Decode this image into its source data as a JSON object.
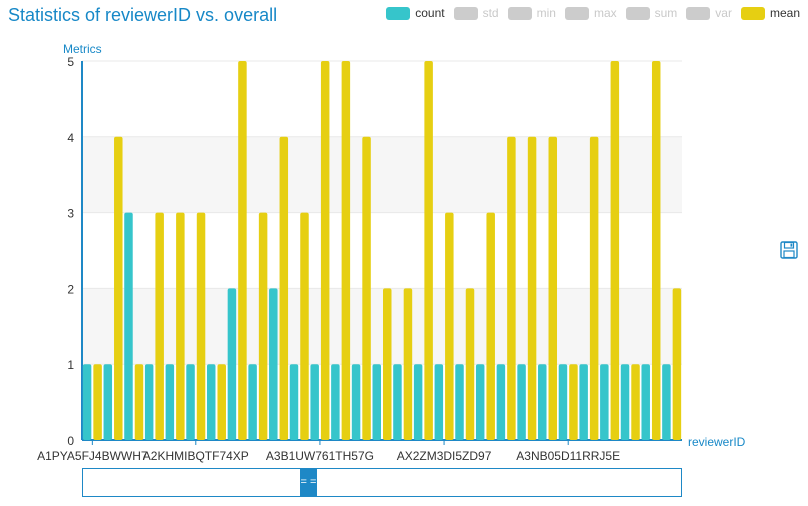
{
  "title": "Statistics of reviewerID vs. overall",
  "legend": [
    {
      "label": "count",
      "color": "#36c5cb",
      "active": true
    },
    {
      "label": "std",
      "color": "#cccccc",
      "active": false
    },
    {
      "label": "min",
      "color": "#cccccc",
      "active": false
    },
    {
      "label": "max",
      "color": "#cccccc",
      "active": false
    },
    {
      "label": "sum",
      "color": "#cccccc",
      "active": false
    },
    {
      "label": "var",
      "color": "#cccccc",
      "active": false
    },
    {
      "label": "mean",
      "color": "#e6cf12",
      "active": true
    }
  ],
  "toolbar": {
    "save_icon": "save-icon"
  },
  "slider": {
    "handle_label": "= =",
    "start": 0.362,
    "end": 0.39
  },
  "chart_data": {
    "type": "bar",
    "ylabel": "Metrics",
    "xlabel": "reviewerID",
    "ylim": [
      0,
      5
    ],
    "yticks": [
      0,
      1,
      2,
      3,
      4,
      5
    ],
    "grid": true,
    "categories": [
      "A1PYA5FJ4BWWH7",
      "",
      "",
      "",
      "",
      "A2KHMIBQTF74XP",
      "",
      "",
      "",
      "",
      "",
      "A3B1UW761TH57G",
      "",
      "",
      "",
      "",
      "",
      "AX2ZM3DI5ZD97",
      "",
      "",
      "",
      "",
      "",
      "A3NB05D11RRJ5E",
      "",
      "",
      "",
      "",
      ""
    ],
    "x_tick_labels": [
      "A1PYA5FJ4BWWH7",
      "A2KHMIBQTF74XP",
      "A3B1UW761TH57G",
      "AX2ZM3DI5ZD97",
      "A3NB05D11RRJ5E"
    ],
    "series": [
      {
        "name": "count",
        "color": "#36c5cb",
        "values": [
          1,
          1,
          3,
          1,
          1,
          1,
          1,
          2,
          1,
          2,
          1,
          1,
          1,
          1,
          1,
          1,
          1,
          1,
          1,
          1,
          1,
          1,
          1,
          1,
          1,
          1,
          1,
          1,
          1
        ]
      },
      {
        "name": "mean",
        "color": "#e6cf12",
        "values": [
          1,
          4,
          1,
          3,
          3,
          3,
          1,
          5,
          3,
          4,
          3,
          5,
          5,
          4,
          2,
          2,
          5,
          3,
          2,
          3,
          4,
          4,
          4,
          1,
          4,
          5,
          1,
          5,
          2
        ]
      }
    ]
  }
}
